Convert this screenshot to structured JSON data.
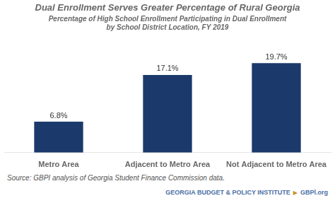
{
  "chart_data": {
    "type": "bar",
    "title": "Dual Enrollment Serves Greater Percentage of Rural Georgia",
    "subtitle": [
      "Percentage of High School Enrollment Participating in Dual Enrollment",
      "by School District Location, FY 2019"
    ],
    "categories": [
      "Metro Area",
      "Adjacent to Metro Area",
      "Not Adjacent to Metro Area"
    ],
    "values": [
      6.8,
      17.1,
      19.7
    ],
    "value_labels": [
      "6.8%",
      "17.1%",
      "19.7%"
    ],
    "color": "#1b3a6b",
    "ylim": [
      0,
      24
    ],
    "grid": false,
    "data_labels": true,
    "tick_labels": "x",
    "annotations": [
      "Source: GBPI analysis of Georgia Student Finance Commission data.",
      "GEORGIA BUDGET & POLICY INSTITUTE",
      "▶",
      "GBPl.org"
    ]
  }
}
